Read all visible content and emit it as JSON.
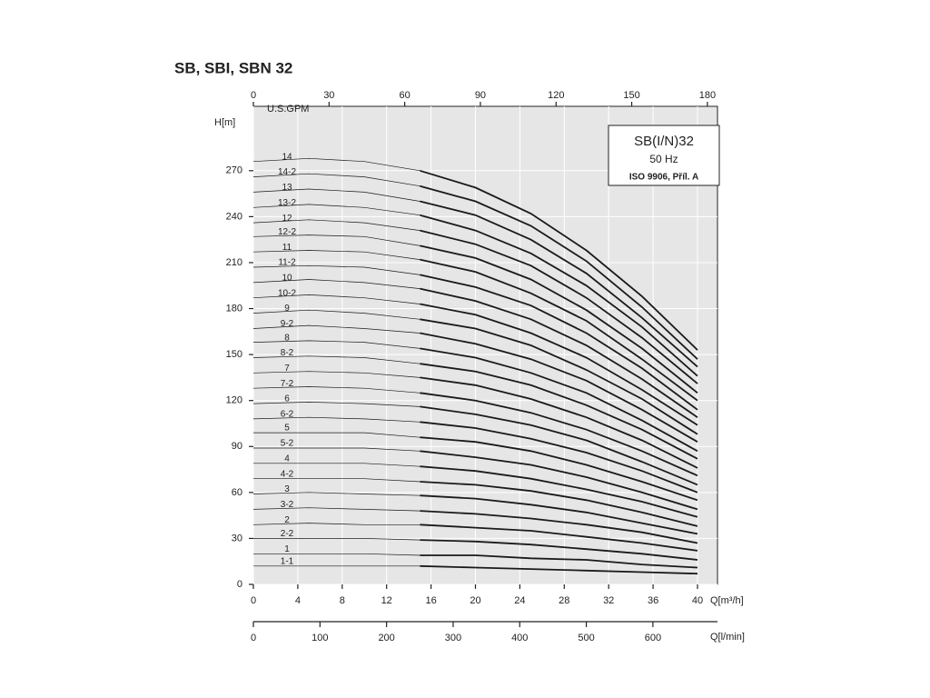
{
  "chart_data": {
    "type": "line",
    "title": "SB, SBI, SBN 32",
    "legend_box": [
      "SB(I/N)32",
      "50 Hz",
      "ISO 9906, Příl. A"
    ],
    "xlabel": "Q[m³/h]",
    "ylabel": "H[m]",
    "x2label": "U.S.GPM",
    "x3label": "Q[l/min]",
    "x": [
      0,
      5,
      10,
      15,
      20,
      25,
      30,
      35,
      40
    ],
    "thick_from": 15,
    "xlim": [
      0,
      41.8
    ],
    "xticks": [
      0,
      4,
      8,
      12,
      16,
      20,
      24,
      28,
      32,
      36,
      40
    ],
    "ylim": [
      0,
      312
    ],
    "yticks": [
      0,
      30,
      60,
      90,
      120,
      150,
      180,
      210,
      240,
      270
    ],
    "x2lim": [
      0,
      184
    ],
    "x2ticks": [
      0,
      30,
      60,
      90,
      120,
      150,
      180
    ],
    "x3lim": [
      0,
      697
    ],
    "x3ticks": [
      0,
      100,
      200,
      300,
      400,
      500,
      600
    ],
    "grid": true,
    "color": "#1a1a1a",
    "series": [
      {
        "name": "14",
        "values": [
          276,
          278,
          276,
          270,
          259,
          242,
          218,
          188,
          153
        ]
      },
      {
        "name": "14-2",
        "values": [
          266,
          268,
          266,
          260,
          250,
          234,
          211,
          181,
          147
        ]
      },
      {
        "name": "13",
        "values": [
          256,
          258,
          256,
          250,
          241,
          225,
          203,
          174,
          142
        ]
      },
      {
        "name": "13-2",
        "values": [
          246,
          248,
          246,
          241,
          231,
          216,
          195,
          168,
          136
        ]
      },
      {
        "name": "12",
        "values": [
          236,
          238,
          236,
          231,
          222,
          208,
          187,
          161,
          131
        ]
      },
      {
        "name": "12-2",
        "values": [
          227,
          228,
          227,
          221,
          213,
          199,
          179,
          154,
          125
        ]
      },
      {
        "name": "11",
        "values": [
          217,
          218,
          217,
          212,
          204,
          190,
          172,
          147,
          120
        ]
      },
      {
        "name": "11-2",
        "values": [
          207,
          208,
          207,
          202,
          194,
          182,
          164,
          141,
          114
        ]
      },
      {
        "name": "10",
        "values": [
          197,
          199,
          197,
          193,
          185,
          173,
          156,
          134,
          109
        ]
      },
      {
        "name": "10-2",
        "values": [
          187,
          189,
          187,
          183,
          176,
          164,
          148,
          127,
          104
        ]
      },
      {
        "name": "9",
        "values": [
          177,
          179,
          177,
          173,
          167,
          156,
          140,
          121,
          98
        ]
      },
      {
        "name": "9-2",
        "values": [
          167,
          169,
          167,
          164,
          157,
          147,
          133,
          114,
          93
        ]
      },
      {
        "name": "8",
        "values": [
          158,
          159,
          158,
          154,
          148,
          138,
          125,
          107,
          87
        ]
      },
      {
        "name": "8-2",
        "values": [
          148,
          149,
          148,
          144,
          139,
          130,
          117,
          101,
          82
        ]
      },
      {
        "name": "7",
        "values": [
          138,
          139,
          138,
          135,
          130,
          121,
          109,
          94,
          76
        ]
      },
      {
        "name": "7-2",
        "values": [
          128,
          129,
          128,
          125,
          120,
          112,
          101,
          87,
          71
        ]
      },
      {
        "name": "6",
        "values": [
          118,
          119,
          118,
          116,
          111,
          104,
          94,
          80,
          65
        ]
      },
      {
        "name": "6-2",
        "values": [
          108,
          109,
          108,
          106,
          102,
          95,
          86,
          74,
          60
        ]
      },
      {
        "name": "5",
        "values": [
          99,
          99,
          99,
          96,
          93,
          87,
          78,
          67,
          55
        ]
      },
      {
        "name": "5-2",
        "values": [
          89,
          89,
          89,
          87,
          83,
          78,
          70,
          60,
          49
        ]
      },
      {
        "name": "4",
        "values": [
          79,
          79,
          79,
          77,
          74,
          69,
          62,
          54,
          44
        ]
      },
      {
        "name": "4-2",
        "values": [
          69,
          69,
          69,
          67,
          65,
          61,
          55,
          47,
          38
        ]
      },
      {
        "name": "3",
        "values": [
          59,
          60,
          59,
          58,
          56,
          52,
          47,
          40,
          33
        ]
      },
      {
        "name": "3-2",
        "values": [
          49,
          50,
          49,
          48,
          46,
          43,
          39,
          34,
          27
        ]
      },
      {
        "name": "2",
        "values": [
          39,
          40,
          39,
          39,
          37,
          35,
          31,
          27,
          22
        ]
      },
      {
        "name": "2-2",
        "values": [
          30,
          30,
          30,
          29,
          28,
          26,
          23,
          20,
          16
        ]
      },
      {
        "name": "1",
        "values": [
          20,
          20,
          20,
          19,
          19,
          17,
          16,
          13,
          11
        ]
      },
      {
        "name": "1-1",
        "values": [
          12,
          12,
          12,
          12,
          11,
          10,
          9,
          8,
          7
        ]
      }
    ]
  }
}
